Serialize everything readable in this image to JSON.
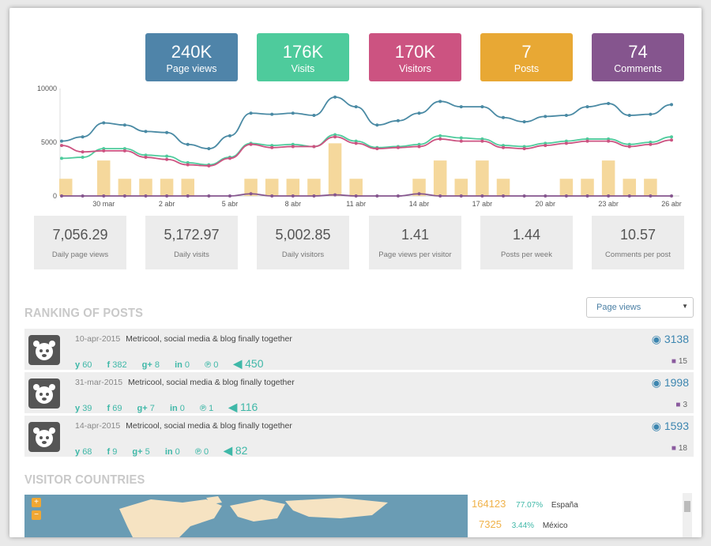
{
  "stats": [
    {
      "value": "240K",
      "label": "Page views",
      "color": "#4f84a9"
    },
    {
      "value": "176K",
      "label": "Visits",
      "color": "#4ecb9c"
    },
    {
      "value": "170K",
      "label": "Visitors",
      "color": "#cc5381"
    },
    {
      "value": "7",
      "label": "Posts",
      "color": "#e8a834"
    },
    {
      "value": "74",
      "label": "Comments",
      "color": "#85558e"
    }
  ],
  "chart_data": {
    "type": "line",
    "x_labels": [
      "30 mar",
      "2 abr",
      "5 abr",
      "8 abr",
      "11 abr",
      "14 abr",
      "17 abr",
      "20 abr",
      "23 abr",
      "26 abr"
    ],
    "y_ticks": [
      "10000",
      "5000",
      "0"
    ],
    "ylim": [
      0,
      10000
    ],
    "series": [
      {
        "name": "Page views",
        "color": "#4a8aa4",
        "values": [
          5100,
          5500,
          6800,
          6600,
          6000,
          5900,
          4800,
          4400,
          5600,
          7700,
          7600,
          7700,
          7500,
          9200,
          8300,
          6600,
          7000,
          7700,
          8800,
          8300,
          8300,
          7300,
          6900,
          7400,
          7500,
          8300,
          8600,
          7500,
          7600,
          8500
        ]
      },
      {
        "name": "Visits",
        "color": "#4ecb9c",
        "values": [
          3500,
          3600,
          4400,
          4400,
          3800,
          3700,
          3100,
          2900,
          3600,
          4900,
          4700,
          4800,
          4600,
          5700,
          5100,
          4500,
          4600,
          4800,
          5600,
          5400,
          5300,
          4700,
          4600,
          4900,
          5100,
          5300,
          5300,
          4800,
          5000,
          5500
        ]
      },
      {
        "name": "Visitors",
        "color": "#cc5381",
        "values": [
          4700,
          4100,
          4200,
          4200,
          3600,
          3400,
          2900,
          2800,
          3500,
          4800,
          4500,
          4600,
          4600,
          5500,
          4900,
          4400,
          4500,
          4600,
          5300,
          5100,
          5100,
          4500,
          4400,
          4700,
          4900,
          5100,
          5100,
          4600,
          4800,
          5200
        ]
      },
      {
        "name": "Posts",
        "color": "#85558e",
        "values": [
          0,
          0,
          0,
          0,
          0,
          0,
          0,
          0,
          0,
          200,
          0,
          0,
          0,
          100,
          0,
          0,
          0,
          200,
          0,
          0,
          0,
          0,
          0,
          0,
          0,
          0,
          0,
          0,
          0,
          0
        ]
      },
      {
        "name": "Comments",
        "color": "#f5d89c",
        "values": [
          1600,
          0,
          3300,
          1600,
          1600,
          1600,
          1600,
          0,
          0,
          1600,
          1600,
          1600,
          1600,
          4900,
          1600,
          0,
          0,
          1600,
          3300,
          1600,
          3300,
          1600,
          0,
          0,
          1600,
          1600,
          3300,
          1600,
          1600,
          0
        ]
      }
    ]
  },
  "daily": [
    {
      "value": "7,056.29",
      "label": "Daily page views"
    },
    {
      "value": "5,172.97",
      "label": "Daily visits"
    },
    {
      "value": "5,002.85",
      "label": "Daily visitors"
    },
    {
      "value": "1.41",
      "label": "Page views per visitor"
    },
    {
      "value": "1.44",
      "label": "Posts per week"
    },
    {
      "value": "10.57",
      "label": "Comments per post"
    }
  ],
  "ranking": {
    "title": "RANKING OF POSTS",
    "dropdown_value": "Page views",
    "posts": [
      {
        "date": "10-apr-2015",
        "title": "Metricool, social media & blog finally together",
        "twitter": "60",
        "facebook": "382",
        "gplus": "8",
        "linkedin": "0",
        "pinterest": "0",
        "total": "450",
        "views": "3138",
        "comments": "15"
      },
      {
        "date": "31-mar-2015",
        "title": "Metricool, social media & blog finally together",
        "twitter": "39",
        "facebook": "69",
        "gplus": "7",
        "linkedin": "0",
        "pinterest": "1",
        "total": "116",
        "views": "1998",
        "comments": "3"
      },
      {
        "date": "14-apr-2015",
        "title": "Metricool, social media & blog finally together",
        "twitter": "68",
        "facebook": "9",
        "gplus": "5",
        "linkedin": "0",
        "pinterest": "0",
        "total": "82",
        "views": "1593",
        "comments": "18"
      }
    ]
  },
  "countries": {
    "title": "VISITOR COUNTRIES",
    "rows": [
      {
        "number": "164123",
        "percent": "77.07%",
        "country": "España"
      },
      {
        "number": "7325",
        "percent": "3.44%",
        "country": "México"
      }
    ],
    "zoom_in": "+",
    "zoom_out": "−"
  },
  "icons": {
    "twitter": "y",
    "facebook": "f",
    "gplus": "g+",
    "linkedin": "in",
    "pinterest": "℗",
    "megaphone": "📢",
    "eye": "👁",
    "comment": "💬"
  }
}
